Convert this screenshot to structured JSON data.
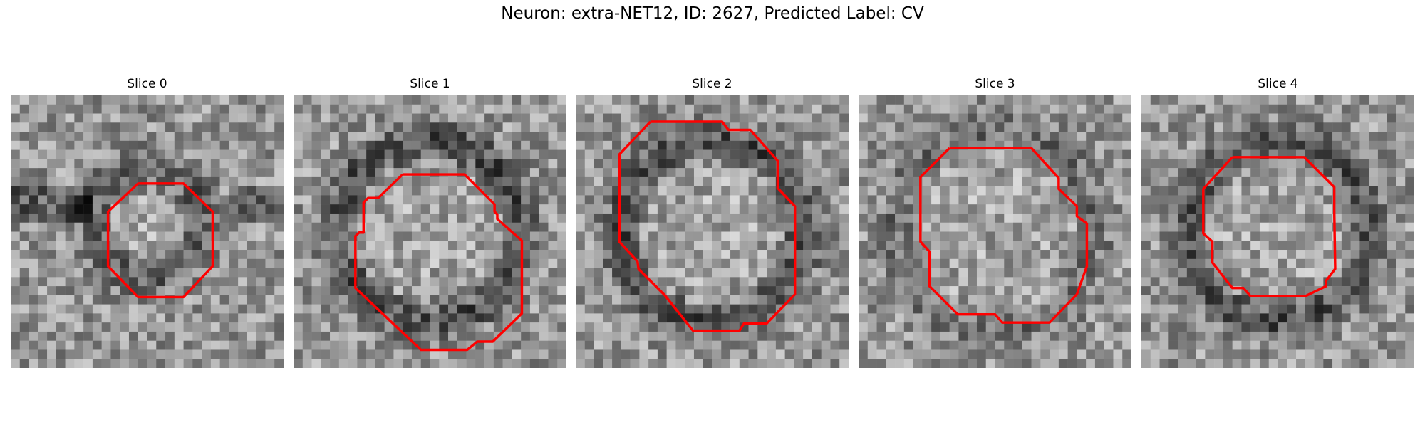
{
  "figure": {
    "title": "Neuron: extra-NET12, ID: 2627, Predicted Label: CV"
  },
  "panels": [
    {
      "title": "Slice 0",
      "image": "grayscale-microscopy-tile",
      "ring": "dark-horizontal-band"
    },
    {
      "title": "Slice 1",
      "image": "grayscale-microscopy-tile",
      "ring": "dark-ring-bright-center"
    },
    {
      "title": "Slice 2",
      "image": "grayscale-microscopy-tile",
      "ring": "dark-ring-bright-center"
    },
    {
      "title": "Slice 3",
      "image": "grayscale-microscopy-tile",
      "ring": "faint-ring"
    },
    {
      "title": "Slice 4",
      "image": "grayscale-microscopy-tile",
      "ring": "dark-ring-bright-center"
    }
  ],
  "style": {
    "contour_color": "#ff0000",
    "colormap": "gray"
  }
}
